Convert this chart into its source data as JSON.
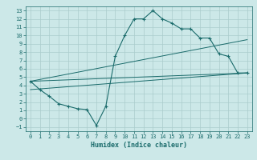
{
  "xlabel": "Humidex (Indice chaleur)",
  "ylabel": "",
  "background_color": "#cce8e8",
  "grid_color": "#aacccc",
  "line_color": "#1a6b6b",
  "xlim": [
    -0.5,
    23.5
  ],
  "ylim": [
    -1.5,
    13.5
  ],
  "xticks": [
    0,
    1,
    2,
    3,
    4,
    5,
    6,
    7,
    8,
    9,
    10,
    11,
    12,
    13,
    14,
    15,
    16,
    17,
    18,
    19,
    20,
    21,
    22,
    23
  ],
  "yticks": [
    -1,
    0,
    1,
    2,
    3,
    4,
    5,
    6,
    7,
    8,
    9,
    10,
    11,
    12,
    13
  ],
  "main_line": {
    "x": [
      0,
      1,
      2,
      3,
      4,
      5,
      6,
      7,
      8,
      9,
      10,
      11,
      12,
      13,
      14,
      15,
      16,
      17,
      18,
      19,
      20,
      21,
      22,
      23
    ],
    "y": [
      4.5,
      3.5,
      2.7,
      1.8,
      1.5,
      1.2,
      1.1,
      -0.8,
      1.5,
      7.5,
      10.0,
      12.0,
      12.0,
      13.0,
      12.0,
      11.5,
      10.8,
      10.8,
      9.7,
      9.7,
      7.8,
      7.5,
      5.5,
      5.5
    ]
  },
  "straight_lines": [
    {
      "x": [
        0,
        23
      ],
      "y": [
        4.5,
        5.5
      ]
    },
    {
      "x": [
        0,
        23
      ],
      "y": [
        3.5,
        5.5
      ]
    },
    {
      "x": [
        0,
        23
      ],
      "y": [
        4.5,
        9.5
      ]
    }
  ],
  "xlabel_fontsize": 6,
  "tick_fontsize": 5
}
